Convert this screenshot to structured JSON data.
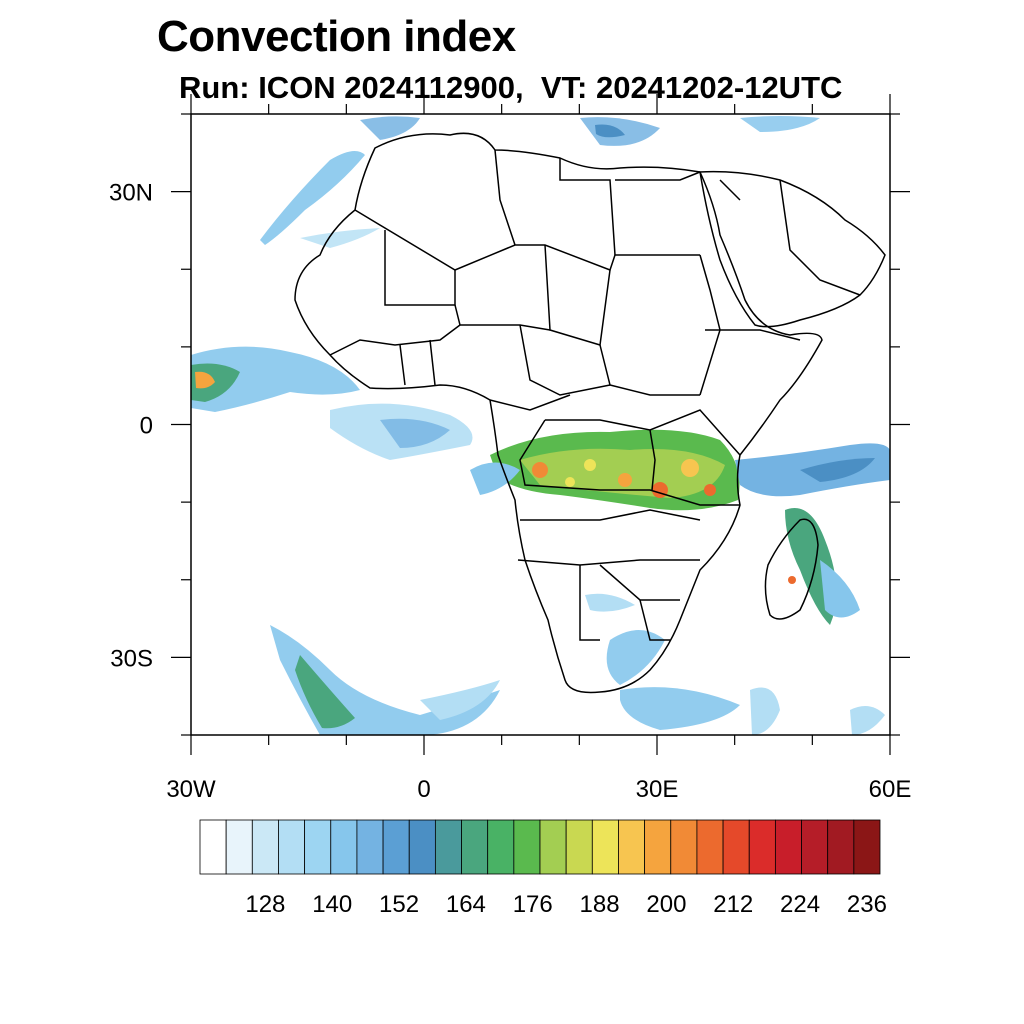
{
  "title": "Convection index",
  "subtitle": "Run: ICON 2024112900,  VT: 20241202-12UTC",
  "map": {
    "lon_range": [
      -30,
      60
    ],
    "lat_range": [
      -40,
      40
    ],
    "lat_labels": [
      {
        "lat": 30,
        "label": "30N"
      },
      {
        "lat": 0,
        "label": "0"
      },
      {
        "lat": -30,
        "label": "30S"
      }
    ],
    "lon_labels": [
      {
        "lon": -30,
        "label": "30W"
      },
      {
        "lon": 0,
        "label": "0"
      },
      {
        "lon": 30,
        "label": "30E"
      },
      {
        "lon": 60,
        "label": "60E"
      }
    ]
  },
  "colorbar": {
    "colors": [
      "#ffffff",
      "#e8f4fb",
      "#cbe8f6",
      "#b3def4",
      "#9dd5f2",
      "#86c6ec",
      "#74b3e2",
      "#5b9fd4",
      "#4b8fc4",
      "#4a9a9c",
      "#4aa67e",
      "#49b265",
      "#5aba4e",
      "#a3ce52",
      "#c9d851",
      "#ede459",
      "#f7c550",
      "#f5a43e",
      "#f18a36",
      "#ec6a2e",
      "#e5492a",
      "#db2c2a",
      "#c81e2a",
      "#b51d28",
      "#a11a22",
      "#8b1616"
    ],
    "tick_labels": [
      "128",
      "140",
      "152",
      "164",
      "176",
      "188",
      "200",
      "212",
      "224",
      "236"
    ],
    "tick_after_box": [
      2,
      5,
      8,
      11,
      14,
      17,
      20,
      23,
      26,
      29
    ]
  }
}
